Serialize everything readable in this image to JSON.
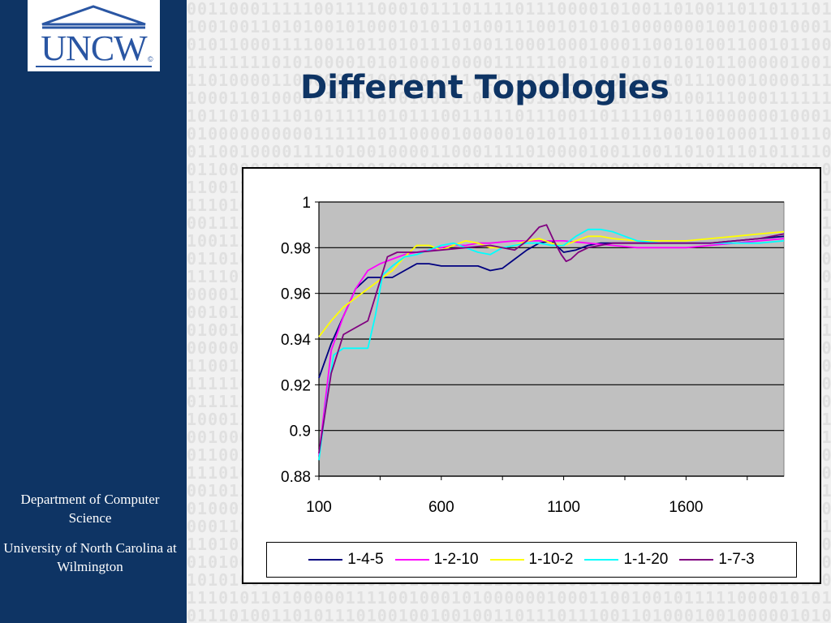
{
  "slide": {
    "title": "Different Topologies",
    "department": "Department of Computer Science",
    "university": "University of North Carolina at Wilmington",
    "logo_text": "UNCW",
    "colors": {
      "sidebar": "#0e3464",
      "title": "#0e3464",
      "logo_text": "#2a56a3",
      "plot_bg": "#c0c0c0"
    }
  },
  "chart_data": {
    "type": "line",
    "title": "",
    "xlabel": "",
    "ylabel": "",
    "xlim": [
      100,
      2000
    ],
    "ylim": [
      0.88,
      1.0
    ],
    "x_ticks": [
      100,
      600,
      1100,
      1600
    ],
    "y_ticks": [
      0.88,
      0.9,
      0.92,
      0.94,
      0.96,
      0.98,
      1.0
    ],
    "y_tick_labels": [
      "0.88",
      "0.9",
      "0.92",
      "0.94",
      "0.96",
      "0.98",
      "1"
    ],
    "grid": "horizontal",
    "legend": "bottom",
    "series": [
      {
        "name": "1-4-5",
        "color": "#000080",
        "x": [
          100,
          150,
          200,
          250,
          300,
          350,
          400,
          450,
          500,
          550,
          600,
          650,
          700,
          750,
          800,
          850,
          900,
          950,
          1000,
          1050,
          1100,
          1150,
          1200,
          1250,
          1300,
          1400,
          1500,
          1600,
          1700,
          1800,
          1900,
          2000
        ],
        "y": [
          0.923,
          0.938,
          0.95,
          0.962,
          0.967,
          0.967,
          0.967,
          0.97,
          0.973,
          0.973,
          0.972,
          0.972,
          0.972,
          0.972,
          0.97,
          0.971,
          0.975,
          0.979,
          0.982,
          0.983,
          0.978,
          0.979,
          0.981,
          0.982,
          0.982,
          0.982,
          0.982,
          0.982,
          0.982,
          0.983,
          0.984,
          0.985
        ]
      },
      {
        "name": "1-2-10",
        "color": "#ff00ff",
        "x": [
          100,
          150,
          200,
          250,
          300,
          350,
          400,
          450,
          500,
          550,
          600,
          650,
          700,
          750,
          800,
          900,
          1000,
          1100,
          1200,
          1300,
          1400,
          1500,
          1600,
          1700,
          1800,
          1900,
          2000
        ],
        "y": [
          0.889,
          0.935,
          0.95,
          0.962,
          0.97,
          0.973,
          0.975,
          0.977,
          0.978,
          0.979,
          0.98,
          0.981,
          0.981,
          0.982,
          0.982,
          0.983,
          0.983,
          0.983,
          0.982,
          0.981,
          0.98,
          0.98,
          0.98,
          0.981,
          0.982,
          0.983,
          0.984
        ]
      },
      {
        "name": "1-10-2",
        "color": "#ffff00",
        "x": [
          100,
          150,
          200,
          250,
          300,
          350,
          400,
          450,
          500,
          550,
          600,
          650,
          700,
          750,
          800,
          850,
          900,
          950,
          1000,
          1050,
          1100,
          1150,
          1200,
          1250,
          1300,
          1400,
          1500,
          1600,
          1700,
          1800,
          1900,
          2000
        ],
        "y": [
          0.941,
          0.948,
          0.954,
          0.958,
          0.962,
          0.966,
          0.97,
          0.976,
          0.981,
          0.981,
          0.979,
          0.981,
          0.983,
          0.982,
          0.98,
          0.98,
          0.981,
          0.983,
          0.984,
          0.982,
          0.981,
          0.983,
          0.985,
          0.985,
          0.984,
          0.983,
          0.983,
          0.983,
          0.984,
          0.985,
          0.986,
          0.987
        ]
      },
      {
        "name": "1-1-20",
        "color": "#00ffff",
        "x": [
          100,
          130,
          160,
          200,
          250,
          300,
          330,
          360,
          400,
          450,
          500,
          550,
          600,
          650,
          700,
          750,
          800,
          850,
          900,
          950,
          1000,
          1050,
          1100,
          1150,
          1200,
          1250,
          1300,
          1350,
          1400,
          1500,
          1600,
          1700,
          1800,
          1900,
          2000
        ],
        "y": [
          0.887,
          0.912,
          0.933,
          0.936,
          0.936,
          0.936,
          0.95,
          0.968,
          0.972,
          0.976,
          0.977,
          0.979,
          0.981,
          0.982,
          0.98,
          0.978,
          0.977,
          0.98,
          0.981,
          0.982,
          0.982,
          0.981,
          0.981,
          0.985,
          0.988,
          0.988,
          0.987,
          0.985,
          0.983,
          0.982,
          0.982,
          0.982,
          0.982,
          0.982,
          0.983
        ]
      },
      {
        "name": "1-7-3",
        "color": "#800080",
        "x": [
          100,
          150,
          200,
          250,
          300,
          340,
          380,
          420,
          450,
          500,
          600,
          700,
          800,
          900,
          950,
          1000,
          1030,
          1060,
          1090,
          1110,
          1130,
          1160,
          1200,
          1300,
          1400,
          1500,
          1600,
          1700,
          1800,
          1900,
          2000
        ],
        "y": [
          0.89,
          0.925,
          0.942,
          0.945,
          0.948,
          0.962,
          0.976,
          0.978,
          0.978,
          0.978,
          0.979,
          0.98,
          0.981,
          0.979,
          0.983,
          0.989,
          0.99,
          0.983,
          0.977,
          0.974,
          0.975,
          0.978,
          0.98,
          0.982,
          0.982,
          0.982,
          0.982,
          0.982,
          0.983,
          0.984,
          0.986
        ]
      }
    ]
  }
}
